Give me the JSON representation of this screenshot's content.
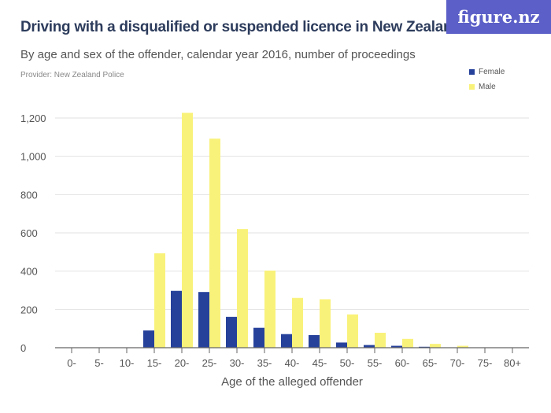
{
  "title": "Driving with a disqualified or suspended licence in New Zealand",
  "subtitle": "By age and sex of the offender, calendar year 2016, number of proceedings",
  "provider": "Provider: New Zealand Police",
  "logo": "figure.nz",
  "chart_data": {
    "type": "bar",
    "xlabel": "Age of the alleged offender",
    "ylabel": "",
    "ylim": [
      0,
      1250
    ],
    "yticks": [
      0,
      200,
      400,
      600,
      800,
      1000,
      1200
    ],
    "ytick_labels": [
      "0",
      "200",
      "400",
      "600",
      "800",
      "1,000",
      "1,200"
    ],
    "grid": true,
    "legend_placement": "top-right",
    "categories": [
      "0-",
      "5-",
      "10-",
      "15-",
      "20-",
      "25-",
      "30-",
      "35-",
      "40-",
      "45-",
      "50-",
      "55-",
      "60-",
      "65-",
      "70-",
      "75-",
      "80+"
    ],
    "series": [
      {
        "name": "Female",
        "color": "#26419a",
        "values": [
          0,
          0,
          0,
          90,
          297,
          291,
          161,
          104,
          71,
          66,
          27,
          14,
          10,
          5,
          2,
          0,
          0
        ]
      },
      {
        "name": "Male",
        "color": "#f9f27a",
        "values": [
          0,
          0,
          0,
          493,
          1227,
          1092,
          620,
          403,
          260,
          253,
          174,
          78,
          46,
          20,
          10,
          1,
          0
        ]
      }
    ]
  }
}
